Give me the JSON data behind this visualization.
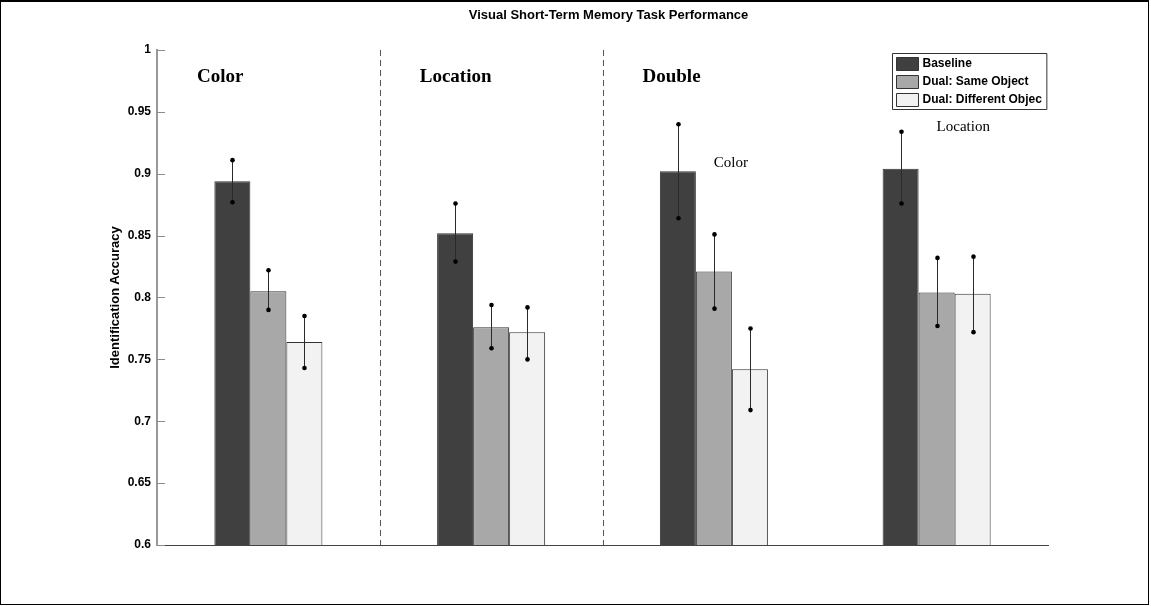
{
  "chart_data": {
    "type": "bar",
    "title": "Visual Short-Term Memory Task Performance",
    "ylabel": "Identification Accuracy",
    "categories": [
      null,
      null,
      null,
      null
    ],
    "series": [
      {
        "name": "Baseline",
        "color": "#404040",
        "values": [
          0.894,
          0.852,
          0.902,
          0.904
        ],
        "errors": [
          [
            0.877,
            0.911
          ],
          [
            0.829,
            0.876
          ],
          [
            0.864,
            0.94
          ],
          [
            0.876,
            0.934
          ]
        ]
      },
      {
        "name": "Dual: Same Object",
        "color": "#a8a8a8",
        "values": [
          0.805,
          0.776,
          0.821,
          0.804
        ],
        "errors": [
          [
            0.79,
            0.822
          ],
          [
            0.759,
            0.794
          ],
          [
            0.791,
            0.851
          ],
          [
            0.777,
            0.832
          ]
        ]
      },
      {
        "name": "Dual: Different Objec",
        "color": "#f2f2f2",
        "values": [
          0.764,
          0.772,
          0.742,
          0.803
        ],
        "errors": [
          [
            0.743,
            0.785
          ],
          [
            0.75,
            0.792
          ],
          [
            0.709,
            0.775
          ],
          [
            0.772,
            0.833
          ]
        ]
      }
    ],
    "ylim": [
      0.6,
      1
    ],
    "yticks": [
      0.6,
      0.65,
      0.7,
      0.75,
      0.8,
      0.85,
      0.9,
      0.95,
      1
    ],
    "annotations": [
      "Color",
      "Location",
      "Double",
      "Color",
      "Location"
    ],
    "legend": "top right",
    "tick_labels": "y"
  }
}
